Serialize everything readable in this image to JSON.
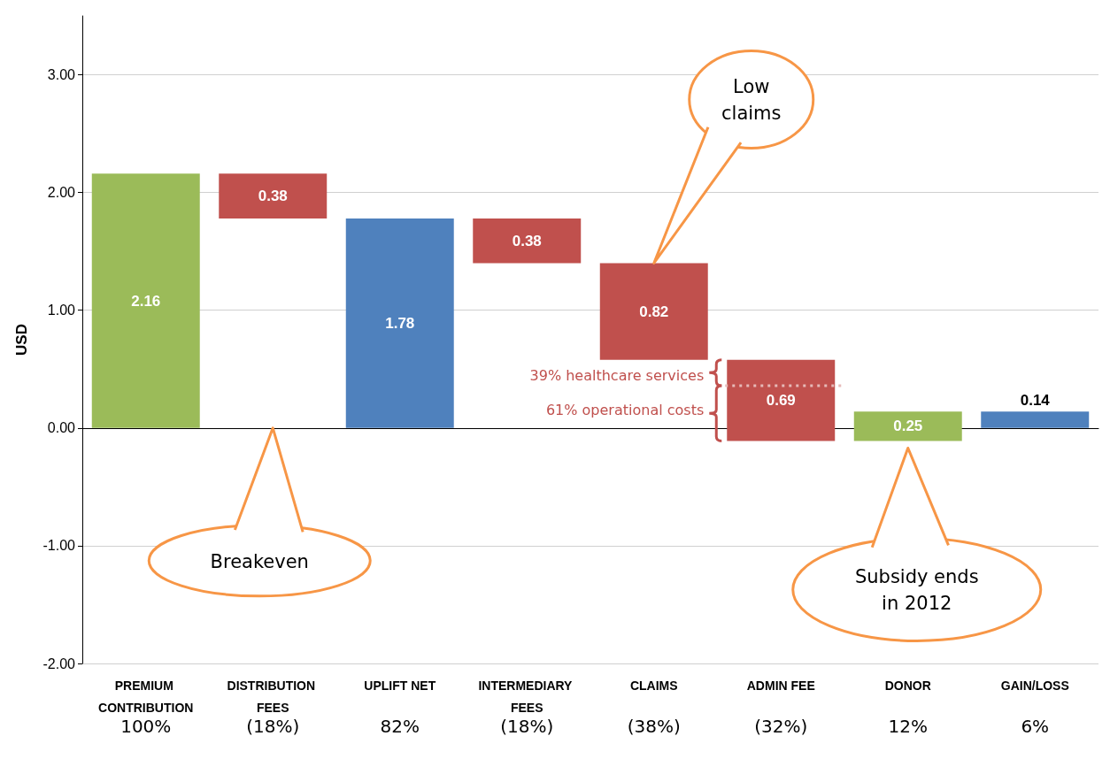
{
  "chart_data": {
    "type": "bar",
    "ylabel": "USD",
    "categories": [
      "PREMIUM CONTRIBUTION",
      "DISTRIBUTION FEES",
      "UPLIFT NET",
      "INTERMEDIARY FEES",
      "CLAIMS",
      "ADMIN FEE",
      "DONOR",
      "GAIN/LOSS"
    ],
    "values": [
      2.16,
      0.38,
      1.78,
      0.38,
      0.82,
      0.69,
      0.25,
      0.14
    ],
    "base": [
      0,
      1.78,
      0,
      1.4,
      0.58,
      -0.11,
      -0.11,
      0
    ],
    "colors": [
      "#9bbb59",
      "#c0504d",
      "#4f81bd",
      "#c0504d",
      "#c0504d",
      "#c0504d",
      "#9bbb59",
      "#4f81bd"
    ],
    "data_labels": true,
    "ylim": [
      -2,
      3.5
    ],
    "yticks": [
      {
        "value": -2,
        "label": "-2.00"
      },
      {
        "value": -1,
        "label": "-1.00"
      },
      {
        "value": 0,
        "label": "0.00"
      },
      {
        "value": 1,
        "label": "1.00"
      },
      {
        "value": 2,
        "label": "2.00"
      },
      {
        "value": 3,
        "label": "3.00"
      }
    ],
    "grid": "y",
    "annotations": [
      "100%",
      "(18%)",
      "82%",
      "(18%)",
      "(38%)",
      "(32%)",
      "12%",
      "6%",
      "Low claims",
      "Breakeven",
      "39% healthcare services",
      "61% operational costs",
      "Subsidy ends in 2012"
    ]
  }
}
